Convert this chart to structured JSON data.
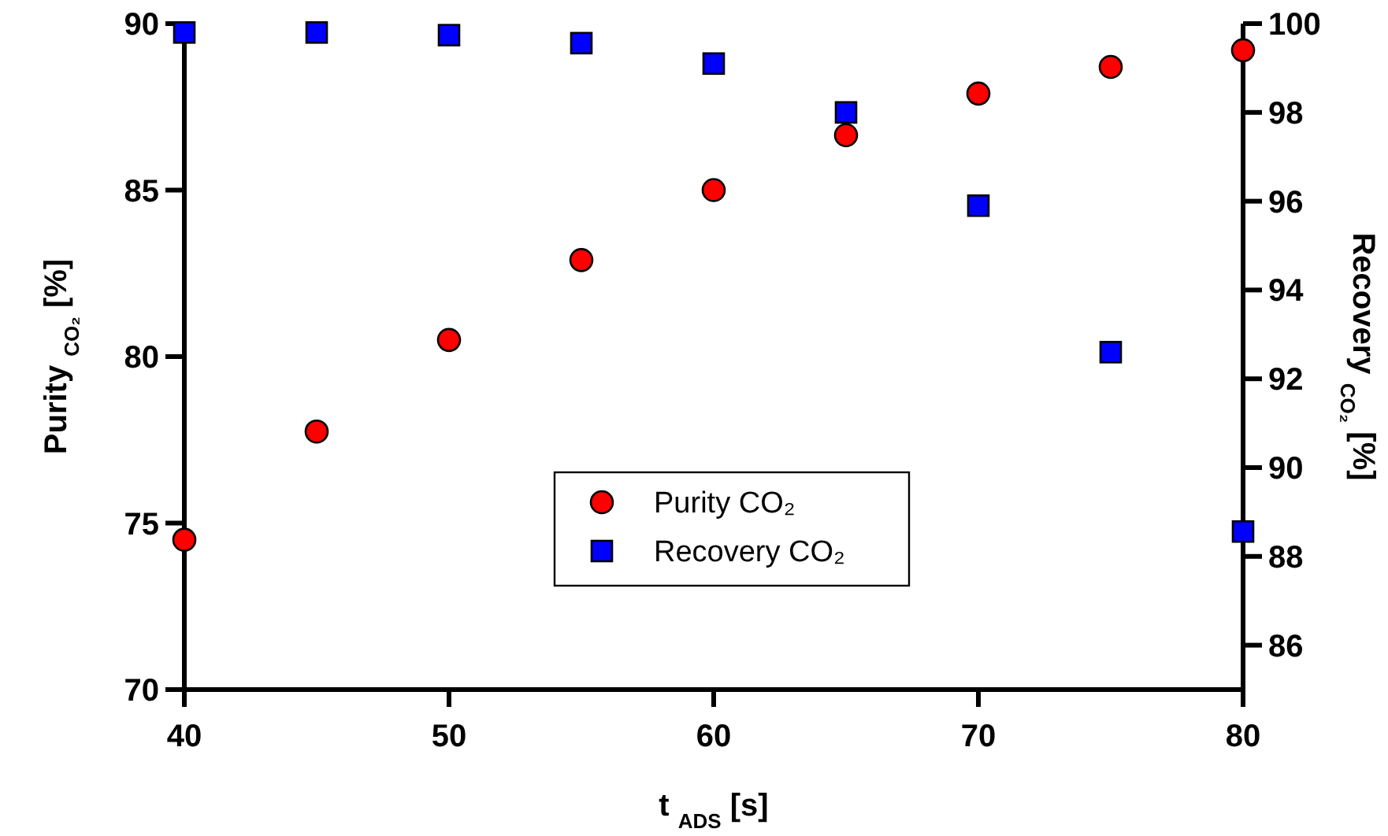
{
  "chart_data": {
    "type": "scatter",
    "xlabel": "t $_{ADS}$ [s]",
    "ylabel": "Purity $_{CO₂}$ [%]",
    "y2label": "Recovery $_{CO₂}$ [%]",
    "x": [
      40,
      45,
      50,
      55,
      60,
      65,
      70,
      75,
      80
    ],
    "xlim": [
      40,
      80
    ],
    "xticks": [
      40,
      50,
      60,
      70,
      80
    ],
    "ylim": [
      70,
      90
    ],
    "yticks": [
      70,
      75,
      80,
      85,
      90
    ],
    "y2lim": [
      85,
      100
    ],
    "y2ticks": [
      86,
      88,
      90,
      92,
      94,
      96,
      98,
      100
    ],
    "grid": false,
    "legend": "bottom",
    "series": [
      {
        "name": "Purity CO₂",
        "color": "#ff0000",
        "marker": "circle",
        "values": [
          74.5,
          77.75,
          80.5,
          82.9,
          85.0,
          86.65,
          87.9,
          88.7,
          89.2
        ]
      },
      {
        "name": "Recovery CO₂",
        "color": "#0000ff",
        "marker": "square",
        "axis": "y2",
        "values": [
          99.8,
          99.8,
          99.74,
          99.56,
          99.1,
          98.0,
          95.9,
          92.6,
          88.56
        ]
      }
    ]
  }
}
